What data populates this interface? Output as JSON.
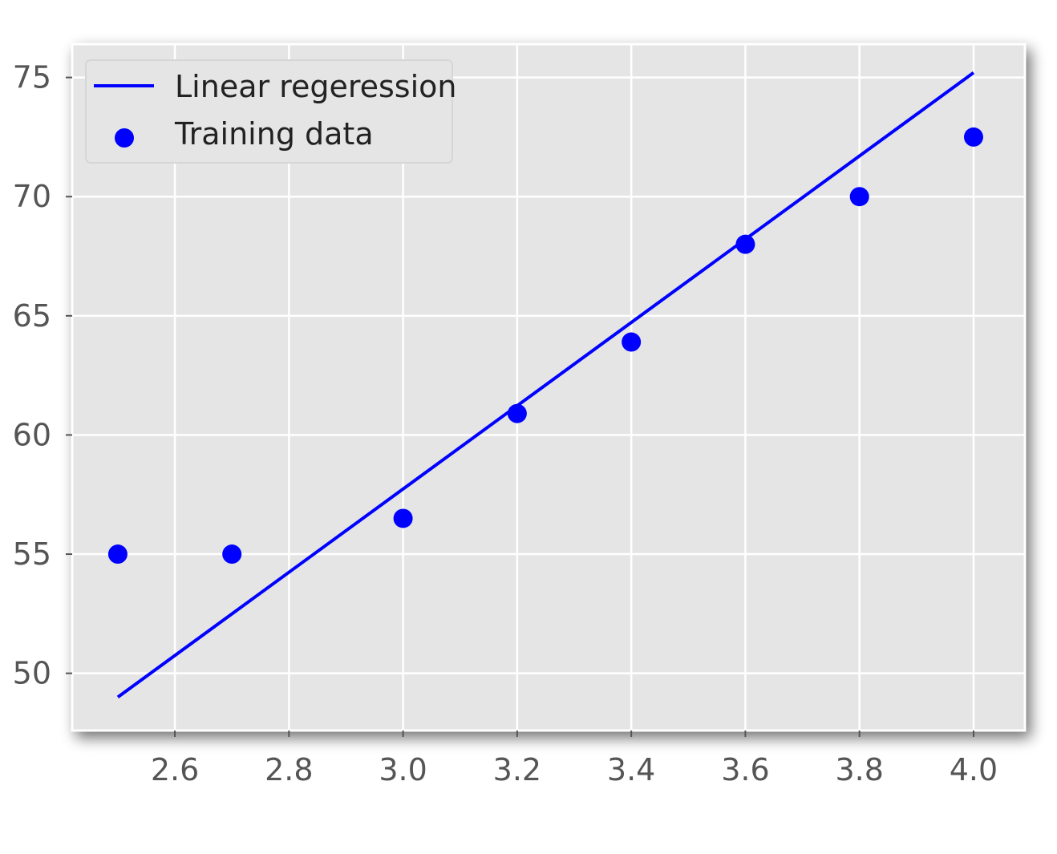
{
  "chart_data": {
    "type": "scatter",
    "x_ticks": [
      "2.6",
      "2.8",
      "3.0",
      "3.2",
      "3.4",
      "3.6",
      "3.8",
      "4.0"
    ],
    "y_ticks": [
      "50",
      "55",
      "60",
      "65",
      "70",
      "75"
    ],
    "xlim": [
      2.42,
      4.09
    ],
    "ylim": [
      47.6,
      76.4
    ],
    "grid": true,
    "legend_position": "top-left",
    "series": [
      {
        "name": "Linear regeression",
        "kind": "line",
        "color": "#0000ff",
        "x": [
          2.5,
          4.0
        ],
        "y": [
          49.0,
          75.2
        ]
      },
      {
        "name": "Training data",
        "kind": "scatter",
        "color": "#0000ff",
        "x": [
          2.5,
          2.7,
          3.0,
          3.2,
          3.4,
          3.6,
          3.8,
          4.0
        ],
        "y": [
          55.0,
          55.0,
          56.5,
          60.9,
          63.9,
          68.0,
          70.0,
          72.5
        ]
      }
    ]
  }
}
